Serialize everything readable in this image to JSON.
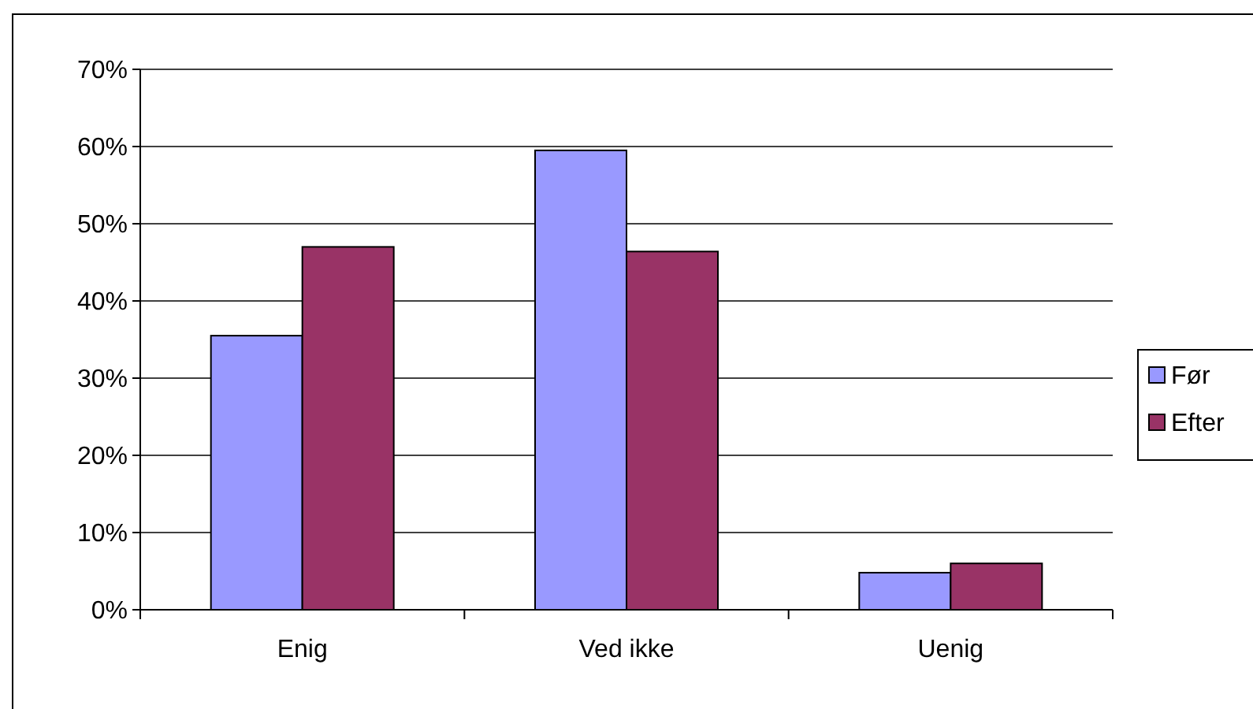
{
  "chart_data": {
    "type": "bar",
    "categories": [
      "Enig",
      "Ved ikke",
      "Uenig"
    ],
    "series": [
      {
        "name": "Før",
        "color": "#9999ff",
        "values": [
          35.5,
          59.5,
          4.8
        ]
      },
      {
        "name": "Efter",
        "color": "#993366",
        "values": [
          47,
          46.4,
          6
        ]
      }
    ],
    "ylim": [
      0,
      70
    ],
    "yticks": [
      {
        "value": 0,
        "label": "0%"
      },
      {
        "value": 10,
        "label": "10%"
      },
      {
        "value": 20,
        "label": "20%"
      },
      {
        "value": 30,
        "label": "30%"
      },
      {
        "value": 40,
        "label": "40%"
      },
      {
        "value": 50,
        "label": "50%"
      },
      {
        "value": 60,
        "label": "60%"
      },
      {
        "value": 70,
        "label": "70%"
      }
    ],
    "grid": "y",
    "legend": "right"
  }
}
